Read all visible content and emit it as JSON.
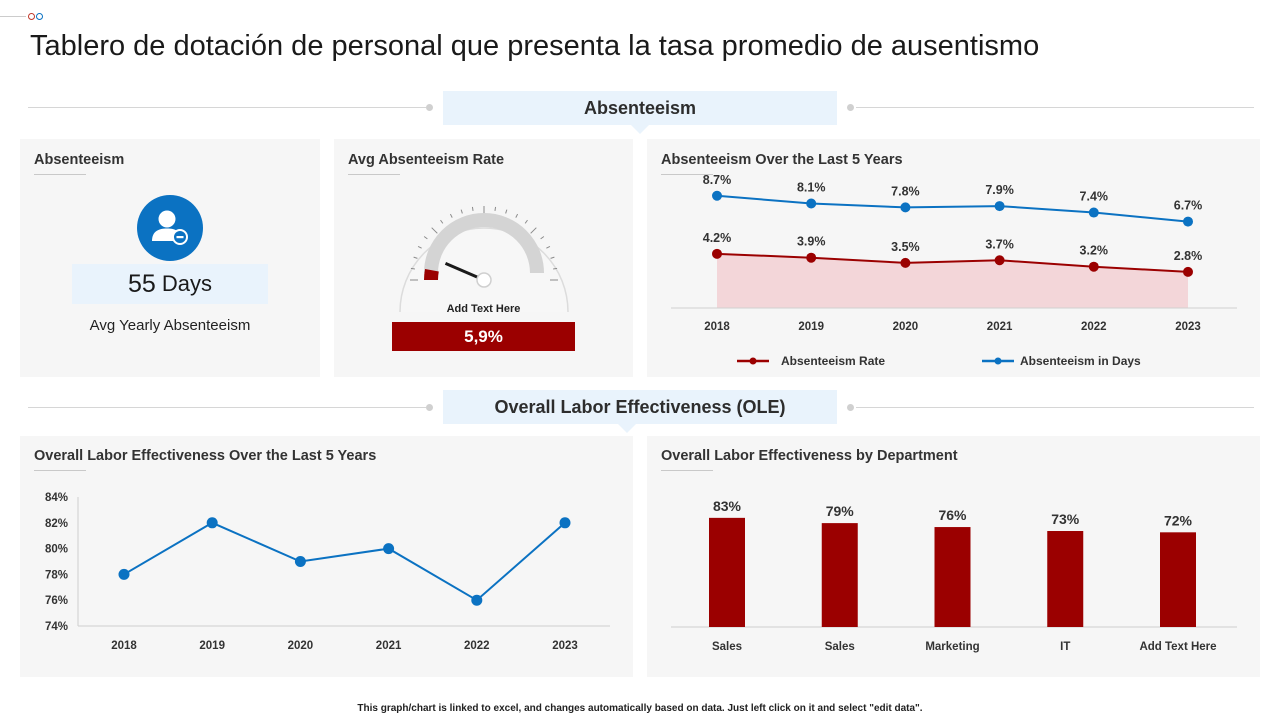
{
  "title": "Tablero de dotación de personal que presenta la tasa promedio de ausentismo",
  "colors": {
    "red": "#9b0000",
    "blue": "#0b72c2",
    "light_blue": "#e9f3fc",
    "panel": "#f6f6f6"
  },
  "sections": {
    "absenteeism": "Absenteeism",
    "ole": "Overall Labor Effectiveness (OLE)"
  },
  "card_absenteeism": {
    "title": "Absenteeism",
    "icon": "user-minus-icon",
    "value": "55",
    "unit": "Days",
    "label": "Avg Yearly Absenteeism"
  },
  "card_rate": {
    "title": "Avg Absenteeism Rate",
    "gauge_fraction": 0.059,
    "gauge_label": "Add Text Here",
    "value": "5,9%"
  },
  "chart_data": [
    {
      "type": "line",
      "title": "Absenteeism Over the Last 5 Years",
      "categories": [
        "2018",
        "2019",
        "2020",
        "2021",
        "2022",
        "2023"
      ],
      "series": [
        {
          "name": "Absenteeism Rate",
          "values": [
            4.2,
            3.9,
            3.5,
            3.7,
            3.2,
            2.8
          ],
          "labels": [
            "4.2%",
            "3.9%",
            "3.5%",
            "3.7%",
            "3.2%",
            "2.8%"
          ],
          "color": "#9b0000",
          "area": true
        },
        {
          "name": "Absenteeism in Days",
          "values": [
            8.7,
            8.1,
            7.8,
            7.9,
            7.4,
            6.7
          ],
          "labels": [
            "8.7%",
            "8.1%",
            "7.8%",
            "7.9%",
            "7.4%",
            "6.7%"
          ],
          "color": "#0b72c2"
        }
      ],
      "legend": "bottom",
      "grid": false
    },
    {
      "type": "line",
      "title": "Overall Labor Effectiveness Over the Last 5 Years",
      "categories": [
        "2018",
        "2019",
        "2020",
        "2021",
        "2022",
        "2023"
      ],
      "values": [
        78,
        82,
        79,
        80,
        76,
        82
      ],
      "ylim": [
        74,
        84
      ],
      "yticks": [
        "74%",
        "76%",
        "78%",
        "80%",
        "82%",
        "84%"
      ],
      "color": "#0b72c2",
      "grid": false
    },
    {
      "type": "bar",
      "title": "Overall Labor Effectiveness by Department",
      "categories": [
        "Sales",
        "Sales",
        "Marketing",
        "IT",
        "Add Text Here"
      ],
      "values": [
        83,
        79,
        76,
        73,
        72
      ],
      "labels": [
        "83%",
        "79%",
        "76%",
        "73%",
        "72%"
      ],
      "color": "#9b0000",
      "grid": false
    }
  ],
  "footnote": "This graph/chart is linked to excel, and changes automatically based on data. Just left click on it and select \"edit data\"."
}
